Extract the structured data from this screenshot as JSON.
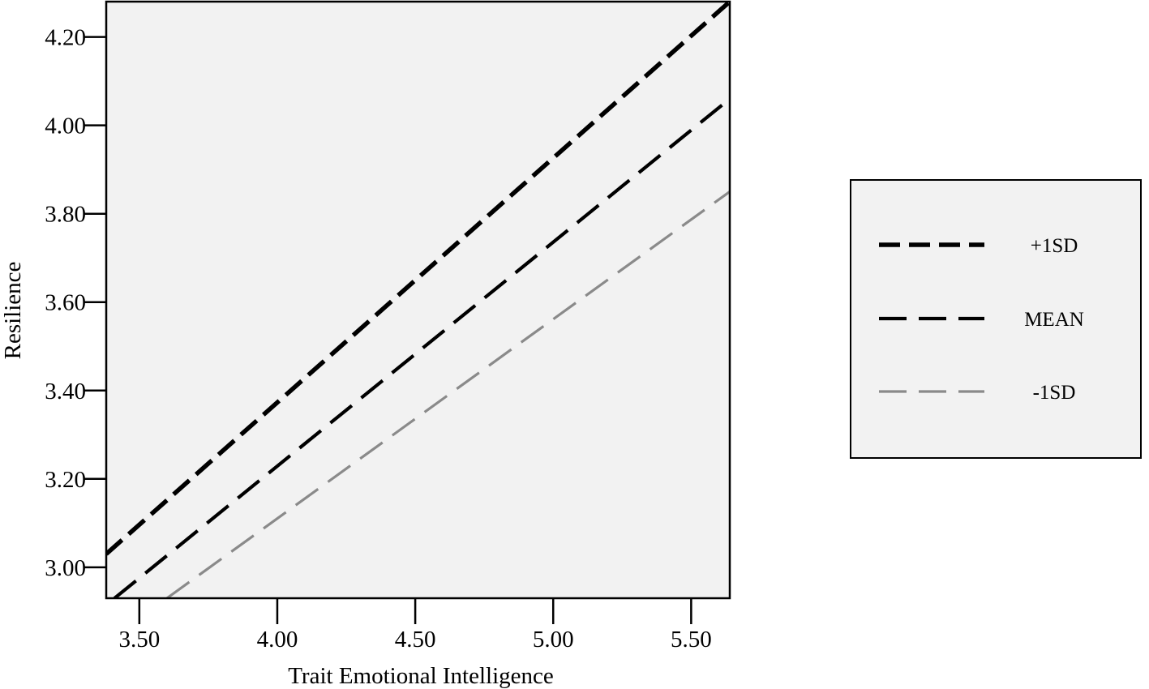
{
  "chart_data": {
    "type": "line",
    "title": "",
    "xlabel": "Trait Emotional Intelligence",
    "ylabel": "Resilience",
    "xlim": [
      3.38,
      5.64
    ],
    "ylim": [
      2.93,
      4.28
    ],
    "xticks": [
      3.5,
      4.0,
      4.5,
      5.0,
      5.5
    ],
    "xtick_labels": [
      "3.50",
      "4.00",
      "4.50",
      "5.00",
      "5.50"
    ],
    "yticks": [
      3.0,
      3.2,
      3.4,
      3.6,
      3.8,
      4.0,
      4.2
    ],
    "ytick_labels": [
      "3.00",
      "3.20",
      "3.40",
      "3.60",
      "3.80",
      "4.00",
      "4.20"
    ],
    "grid": false,
    "legend_position": "right",
    "series": [
      {
        "name": "+1SD",
        "x": [
          3.38,
          5.64
        ],
        "y": [
          3.03,
          4.28
        ],
        "color": "#000000",
        "dash": "short"
      },
      {
        "name": "MEAN",
        "x": [
          3.41,
          5.64
        ],
        "y": [
          2.93,
          4.06
        ],
        "color": "#000000",
        "dash": "long"
      },
      {
        "name": "-1SD",
        "x": [
          3.6,
          5.64
        ],
        "y": [
          2.93,
          3.85
        ],
        "color": "#8a8a8a",
        "dash": "long"
      }
    ],
    "colors": {
      "plot_background": "#f2f2f2",
      "axis": "#000000",
      "legend_background": "#f2f2f2"
    }
  }
}
